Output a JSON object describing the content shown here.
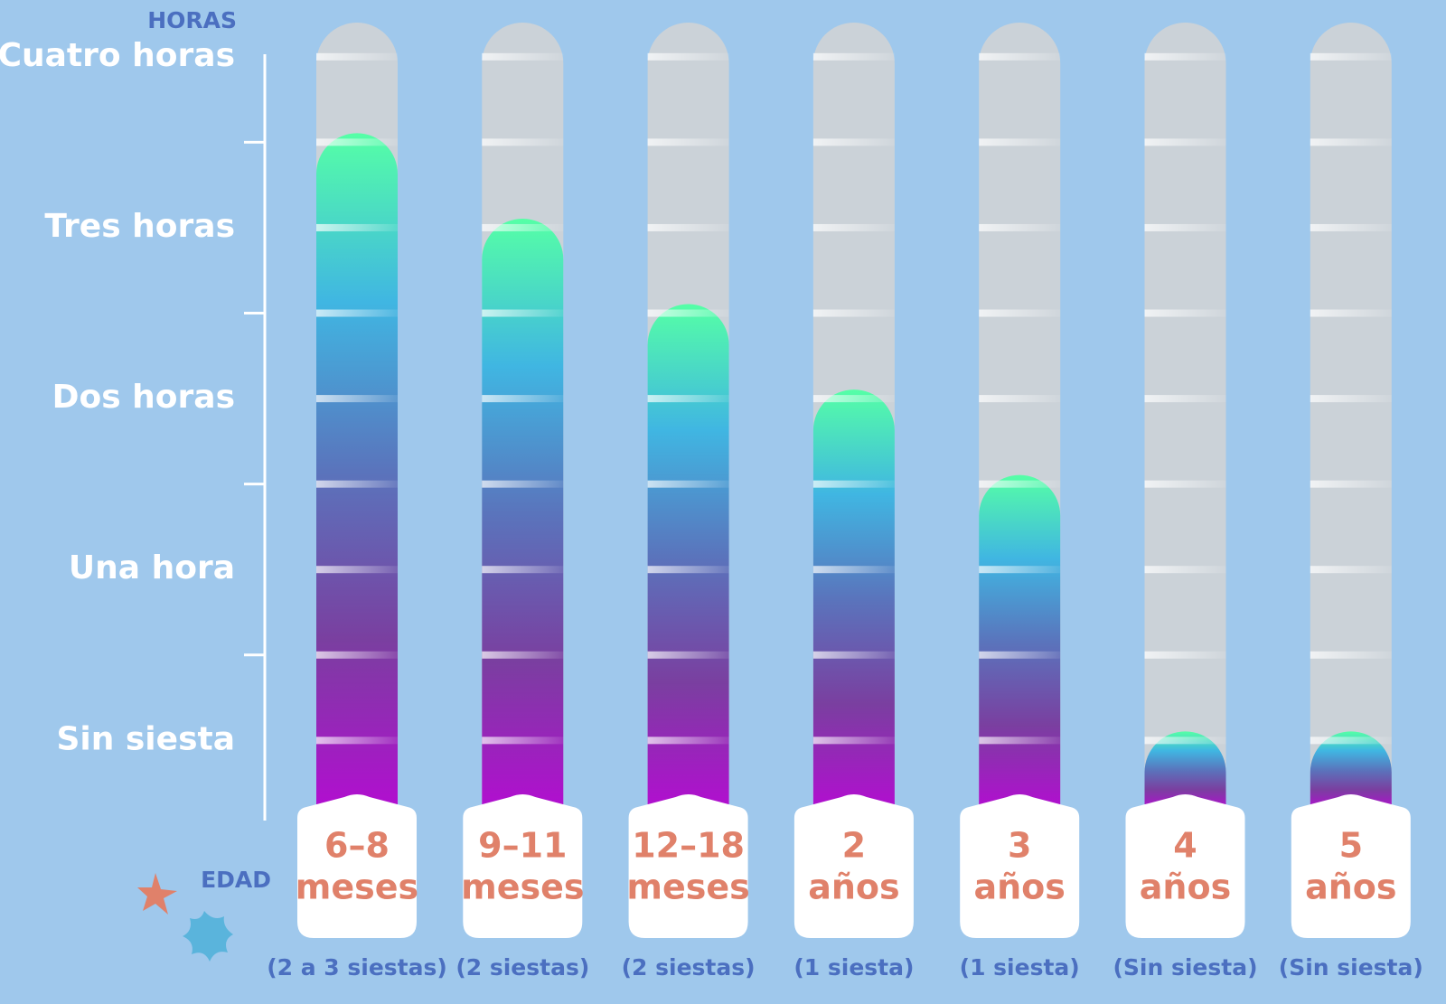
{
  "chart_data": {
    "type": "bar",
    "y_axis_label": "HORAS",
    "x_axis_label": "EDAD",
    "categories": [
      [
        "6–8",
        "meses"
      ],
      [
        "9–11",
        "meses"
      ],
      [
        "12–18",
        "meses"
      ],
      [
        "2",
        "años"
      ],
      [
        "3",
        "años"
      ],
      [
        "4",
        "años"
      ],
      [
        "5",
        "años"
      ]
    ],
    "notes": [
      "(2 a 3 siestas)",
      "(2 siestas)",
      "(2 siestas)",
      "(1 siesta)",
      "(1 siesta)",
      "(Sin siesta)",
      "(Sin siesta)"
    ],
    "values": [
      3.5,
      3,
      2.5,
      2,
      1.5,
      0,
      0
    ],
    "ylim": [
      -0.4,
      4.2
    ],
    "yticks": [
      {
        "value": 4,
        "label": "Cuatro horas"
      },
      {
        "value": 3,
        "label": "Tres horas"
      },
      {
        "value": 2,
        "label": "Dos horas"
      },
      {
        "value": 1,
        "label": "Una hora"
      },
      {
        "value": 0,
        "label": "Sin siesta"
      }
    ],
    "minor_yticks": [
      3.5,
      2.5,
      1.5,
      0.5
    ],
    "gradient": [
      "#55ffa6",
      "#40b6e2",
      "#5a74bc",
      "#7a3fa0",
      "#b20ed0"
    ],
    "track_color": "#cbd2d8"
  }
}
